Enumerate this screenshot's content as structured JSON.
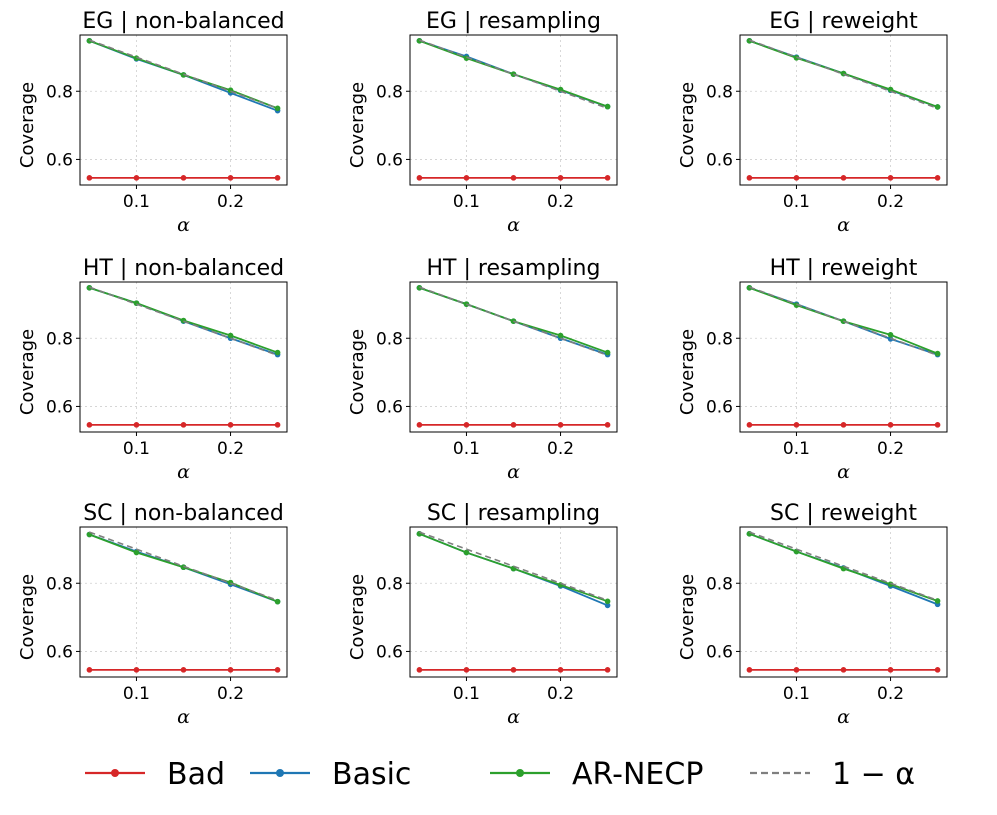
{
  "chart_data": {
    "type": "line",
    "x": [
      0.05,
      0.1,
      0.15,
      0.2,
      0.25
    ],
    "xlabel": "α",
    "ylabel": "Coverage",
    "xlim": [
      0.04,
      0.26
    ],
    "ylim": [
      0.525,
      0.965
    ],
    "xticks": [
      0.1,
      0.2
    ],
    "xtick_labels": [
      "0.1",
      "0.2"
    ],
    "yticks": [
      0.6,
      0.8
    ],
    "ytick_labels": [
      "0.6",
      "0.8"
    ],
    "grid": true,
    "legend": {
      "placement": "bottom",
      "entries": [
        {
          "name": "Bad",
          "color": "#d62728",
          "style": "solid-marker"
        },
        {
          "name": "Basic",
          "color": "#1f77b4",
          "style": "solid-marker"
        },
        {
          "name": "AR-NECP",
          "color": "#2ca02c",
          "style": "solid-marker"
        },
        {
          "name": "1 − α",
          "color": "#7f7f7f",
          "style": "dashed"
        }
      ]
    },
    "panels": [
      {
        "title": "EG | non-balanced",
        "series": [
          {
            "name": "Bad",
            "values": [
              0.546,
              0.546,
              0.546,
              0.546,
              0.546
            ]
          },
          {
            "name": "Basic",
            "values": [
              0.948,
              0.895,
              0.848,
              0.795,
              0.743
            ]
          },
          {
            "name": "AR-NECP",
            "values": [
              0.948,
              0.897,
              0.848,
              0.803,
              0.75
            ]
          },
          {
            "name": "1 − α",
            "values": [
              0.95,
              0.9,
              0.85,
              0.8,
              0.75
            ]
          }
        ]
      },
      {
        "title": "EG | resampling",
        "series": [
          {
            "name": "Bad",
            "values": [
              0.546,
              0.546,
              0.546,
              0.546,
              0.546
            ]
          },
          {
            "name": "Basic",
            "values": [
              0.948,
              0.902,
              0.85,
              0.803,
              0.755
            ]
          },
          {
            "name": "AR-NECP",
            "values": [
              0.948,
              0.897,
              0.85,
              0.805,
              0.755
            ]
          },
          {
            "name": "1 − α",
            "values": [
              0.95,
              0.9,
              0.85,
              0.8,
              0.75
            ]
          }
        ]
      },
      {
        "title": "EG | reweight",
        "series": [
          {
            "name": "Bad",
            "values": [
              0.546,
              0.546,
              0.546,
              0.546,
              0.546
            ]
          },
          {
            "name": "Basic",
            "values": [
              0.948,
              0.9,
              0.852,
              0.803,
              0.754
            ]
          },
          {
            "name": "AR-NECP",
            "values": [
              0.948,
              0.898,
              0.852,
              0.805,
              0.754
            ]
          },
          {
            "name": "1 − α",
            "values": [
              0.95,
              0.9,
              0.85,
              0.8,
              0.75
            ]
          }
        ]
      },
      {
        "title": "HT | non-balanced",
        "series": [
          {
            "name": "Bad",
            "values": [
              0.546,
              0.546,
              0.546,
              0.546,
              0.546
            ]
          },
          {
            "name": "Basic",
            "values": [
              0.948,
              0.903,
              0.85,
              0.8,
              0.752
            ]
          },
          {
            "name": "AR-NECP",
            "values": [
              0.948,
              0.903,
              0.852,
              0.808,
              0.758
            ]
          },
          {
            "name": "1 − α",
            "values": [
              0.95,
              0.9,
              0.85,
              0.8,
              0.75
            ]
          }
        ]
      },
      {
        "title": "HT | resampling",
        "series": [
          {
            "name": "Bad",
            "values": [
              0.546,
              0.546,
              0.546,
              0.546,
              0.546
            ]
          },
          {
            "name": "Basic",
            "values": [
              0.948,
              0.9,
              0.85,
              0.8,
              0.752
            ]
          },
          {
            "name": "AR-NECP",
            "values": [
              0.948,
              0.9,
              0.85,
              0.808,
              0.758
            ]
          },
          {
            "name": "1 − α",
            "values": [
              0.95,
              0.9,
              0.85,
              0.8,
              0.75
            ]
          }
        ]
      },
      {
        "title": "HT | reweight",
        "series": [
          {
            "name": "Bad",
            "values": [
              0.546,
              0.546,
              0.546,
              0.546,
              0.546
            ]
          },
          {
            "name": "Basic",
            "values": [
              0.948,
              0.9,
              0.85,
              0.798,
              0.752
            ]
          },
          {
            "name": "AR-NECP",
            "values": [
              0.948,
              0.897,
              0.85,
              0.81,
              0.755
            ]
          },
          {
            "name": "1 − α",
            "values": [
              0.95,
              0.9,
              0.85,
              0.8,
              0.75
            ]
          }
        ]
      },
      {
        "title": "SC | non-balanced",
        "series": [
          {
            "name": "Bad",
            "values": [
              0.546,
              0.546,
              0.546,
              0.546,
              0.546
            ]
          },
          {
            "name": "Basic",
            "values": [
              0.943,
              0.893,
              0.847,
              0.797,
              0.746
            ]
          },
          {
            "name": "AR-NECP",
            "values": [
              0.943,
              0.89,
              0.847,
              0.802,
              0.746
            ]
          },
          {
            "name": "1 − α",
            "values": [
              0.95,
              0.9,
              0.85,
              0.8,
              0.75
            ]
          }
        ]
      },
      {
        "title": "SC | resampling",
        "series": [
          {
            "name": "Bad",
            "values": [
              0.546,
              0.546,
              0.546,
              0.546,
              0.546
            ]
          },
          {
            "name": "Basic",
            "values": [
              0.945,
              0.89,
              0.843,
              0.792,
              0.735
            ]
          },
          {
            "name": "AR-NECP",
            "values": [
              0.945,
              0.89,
              0.843,
              0.795,
              0.747
            ]
          },
          {
            "name": "1 − α",
            "values": [
              0.95,
              0.9,
              0.85,
              0.8,
              0.75
            ]
          }
        ]
      },
      {
        "title": "SC | reweight",
        "series": [
          {
            "name": "Bad",
            "values": [
              0.546,
              0.546,
              0.546,
              0.546,
              0.546
            ]
          },
          {
            "name": "Basic",
            "values": [
              0.945,
              0.893,
              0.845,
              0.792,
              0.738
            ]
          },
          {
            "name": "AR-NECP",
            "values": [
              0.945,
              0.893,
              0.843,
              0.797,
              0.748
            ]
          },
          {
            "name": "1 − α",
            "values": [
              0.95,
              0.9,
              0.85,
              0.8,
              0.75
            ]
          }
        ]
      }
    ]
  }
}
